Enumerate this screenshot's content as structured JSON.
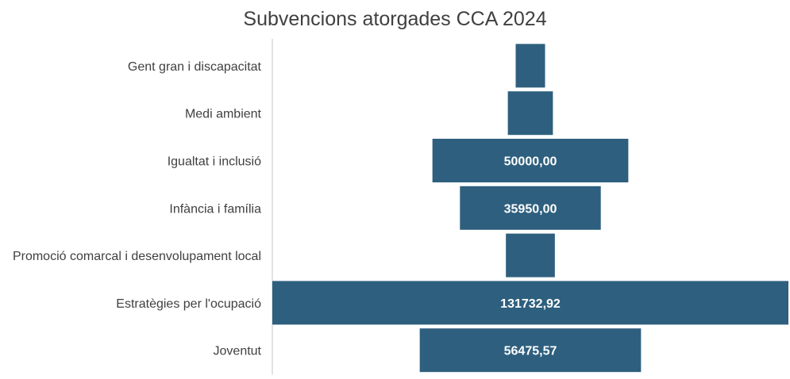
{
  "chart_data": {
    "type": "bar",
    "subtype": "funnel",
    "title": "Subvencions atorgades CCA 2024",
    "categories": [
      "Gent gran i discapacitat",
      "Medi ambient",
      "Igualtat i inclusió",
      "Infància i família",
      "Promoció comarcal i desenvolupament local",
      "Estratègies per l'ocupació",
      "Joventut"
    ],
    "values": [
      7500,
      11500,
      50000,
      35950,
      12500,
      131732.92,
      56475.57
    ],
    "data_labels": [
      "",
      "",
      "50000,00",
      "35950,00",
      "",
      "131732,92",
      "56475,57"
    ],
    "bar_color": "#2e5f7e",
    "label_color": "#ffffff",
    "grid": false,
    "legend": "none"
  }
}
